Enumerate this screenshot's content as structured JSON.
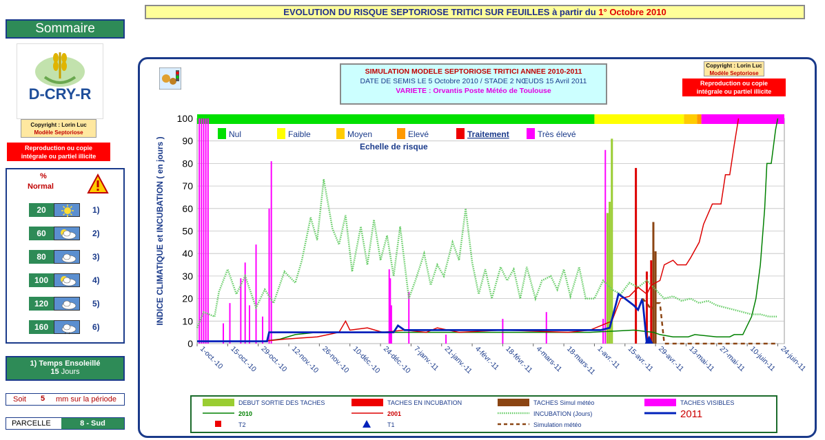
{
  "header": {
    "title_main": "EVOLUTION DU RISQUE SEPTORIOSE TRITICI SUR FEUILLES à partir du ",
    "title_date": "1° Octobre 2010"
  },
  "sidebar": {
    "sommaire": "Sommaire",
    "logo_text": "D-CRY-R",
    "copyright_line1": "Copyright : Lorin Luc",
    "copyright_line2": "Modèle Septoriose",
    "repro_line1": "Reproduction ou copie",
    "repro_line2": "intégrale ou partiel illicite",
    "pct_label": "%",
    "normal_label": "Normal",
    "rows": [
      {
        "pct": "20",
        "num": "1)",
        "icon": "sun-icon"
      },
      {
        "pct": "60",
        "num": "2)",
        "icon": "sun-cloud-icon"
      },
      {
        "pct": "80",
        "num": "3)",
        "icon": "cloud-icon"
      },
      {
        "pct": "100",
        "num": "4)",
        "icon": "sun-cloud-icon"
      },
      {
        "pct": "120",
        "num": "5)",
        "icon": "cloud-icon"
      },
      {
        "pct": "160",
        "num": "6)",
        "icon": "rain-cloud-icon"
      }
    ],
    "temps_label": "1) Temps Ensoleillé",
    "temps_value": "15",
    "temps_unit": "Jours",
    "soit_label": "Soit",
    "soit_value": "5",
    "soit_unit": "mm sur la période",
    "parcelle_label": "PARCELLE",
    "parcelle_value": "8 - Sud"
  },
  "simulation": {
    "line1": "SIMULATION MODELE SEPTORIOSE TRITICI  ANNEE 2010-2011",
    "line2": "DATE DE SEMIS LE 5 Octobre 2010 /  STADE 2 NŒUDS 15 Avril 2011",
    "line3": "VARIETE : Orvantis        Poste Météo de Toulouse"
  },
  "copyright_right": {
    "line1": "Copyright : Lorin Luc",
    "line2": "Modèle Septoriose",
    "repro1": "Reproduction ou copie",
    "repro2": "intégrale ou partiel illicite"
  },
  "colors": {
    "nul": "#00e000",
    "faible": "#ffff00",
    "moyen": "#ffcc00",
    "eleve": "#ff9900",
    "traitement": "#ee0000",
    "tres_eleve": "#ff00ff",
    "s2010": "#008000",
    "s2001": "#dd0000",
    "incubation": "#66cc66",
    "s2011": "#0022bb",
    "sim_meteo": "#8b4513",
    "debut_sortie": "#9acd32",
    "taches_simul": "#8b4513"
  },
  "chart_data": {
    "type": "line",
    "ylabel": "INDICE CLIMATIQUE  et  INCUBATION  ( en jours )",
    "ylim": [
      0,
      100
    ],
    "yticks": [
      "0",
      "10",
      "20",
      "30",
      "40",
      "50",
      "60",
      "70",
      "80",
      "90",
      "100"
    ],
    "xticks": [
      "1-oct.-10",
      "15-oct.-10",
      "29-oct.-10",
      "12-nov.-10",
      "26-nov.-10",
      "10-déc.-10",
      "24-déc.-10",
      "7-janv.-11",
      "21-janv.-11",
      "4-févr.-11",
      "18-févr.-11",
      "4-mars-11",
      "18-mars-11",
      "1-avr.-11",
      "15-avr.-11",
      "29-avr.-11",
      "13-mai-11",
      "27-mai-11",
      "10-juin-11",
      "24-juin-11"
    ],
    "risk_scale_title": "Echelle de risque",
    "risk_scale": [
      {
        "label": "Nul",
        "color": "#00e000"
      },
      {
        "label": "Faible",
        "color": "#ffff00"
      },
      {
        "label": "Moyen",
        "color": "#ffcc00"
      },
      {
        "label": "Elevé",
        "color": "#ff9900"
      },
      {
        "label": "Traitement",
        "color": "#ee0000"
      },
      {
        "label": "Très élevé",
        "color": "#ff00ff"
      }
    ],
    "risk_band": [
      {
        "from": 0,
        "to": 182,
        "color": "#00e000"
      },
      {
        "from": 182,
        "to": 223,
        "color": "#ffff00"
      },
      {
        "from": 223,
        "to": 229,
        "color": "#ffcc00"
      },
      {
        "from": 229,
        "to": 231,
        "color": "#ff9900"
      },
      {
        "from": 231,
        "to": 269,
        "color": "#ff00ff"
      }
    ],
    "series": [
      {
        "name": "INCUBATION (Jours)",
        "style": "dotted",
        "color": "#66cc66",
        "points": [
          [
            0,
            7
          ],
          [
            3,
            14
          ],
          [
            8,
            12
          ],
          [
            10,
            23
          ],
          [
            14,
            33
          ],
          [
            18,
            22
          ],
          [
            22,
            30
          ],
          [
            27,
            16
          ],
          [
            31,
            24
          ],
          [
            35,
            18
          ],
          [
            40,
            32
          ],
          [
            45,
            27
          ],
          [
            48,
            37
          ],
          [
            52,
            56
          ],
          [
            55,
            46
          ],
          [
            58,
            73
          ],
          [
            62,
            51
          ],
          [
            65,
            44
          ],
          [
            68,
            57
          ],
          [
            71,
            32
          ],
          [
            75,
            52
          ],
          [
            78,
            35
          ],
          [
            81,
            55
          ],
          [
            84,
            37
          ],
          [
            87,
            48
          ],
          [
            90,
            30
          ],
          [
            93,
            52
          ],
          [
            97,
            20
          ],
          [
            100,
            28
          ],
          [
            104,
            40
          ],
          [
            107,
            26
          ],
          [
            110,
            35
          ],
          [
            113,
            30
          ],
          [
            117,
            45
          ],
          [
            120,
            37
          ],
          [
            123,
            60
          ],
          [
            126,
            36
          ],
          [
            129,
            22
          ],
          [
            132,
            33
          ],
          [
            135,
            20
          ],
          [
            139,
            34
          ],
          [
            142,
            28
          ],
          [
            145,
            33
          ],
          [
            148,
            20
          ],
          [
            151,
            34
          ],
          [
            155,
            20
          ],
          [
            158,
            28
          ],
          [
            162,
            30
          ],
          [
            165,
            24
          ],
          [
            168,
            33
          ],
          [
            171,
            21
          ],
          [
            175,
            34
          ],
          [
            178,
            20
          ],
          [
            182,
            20
          ],
          [
            186,
            28
          ],
          [
            190,
            24
          ],
          [
            194,
            22
          ],
          [
            198,
            27
          ],
          [
            202,
            25
          ],
          [
            206,
            28
          ],
          [
            210,
            24
          ],
          [
            214,
            20
          ],
          [
            218,
            21
          ],
          [
            222,
            19
          ],
          [
            226,
            20
          ],
          [
            230,
            18
          ],
          [
            234,
            19
          ],
          [
            238,
            17
          ],
          [
            242,
            16
          ],
          [
            246,
            15
          ],
          [
            250,
            14
          ],
          [
            254,
            13
          ],
          [
            258,
            13
          ],
          [
            262,
            12
          ],
          [
            266,
            12
          ]
        ]
      },
      {
        "name": "2010",
        "style": "solid",
        "color": "#008000",
        "points": [
          [
            0,
            1
          ],
          [
            30,
            1
          ],
          [
            38,
            2
          ],
          [
            45,
            4
          ],
          [
            55,
            5
          ],
          [
            80,
            5
          ],
          [
            150,
            5
          ],
          [
            180,
            5
          ],
          [
            200,
            6
          ],
          [
            209,
            5
          ],
          [
            212,
            4
          ],
          [
            218,
            3
          ],
          [
            225,
            3
          ],
          [
            228,
            4
          ],
          [
            238,
            3
          ],
          [
            244,
            3
          ],
          [
            246,
            4
          ],
          [
            250,
            4
          ],
          [
            254,
            12
          ],
          [
            256,
            20
          ],
          [
            258,
            35
          ],
          [
            260,
            60
          ],
          [
            261,
            80
          ],
          [
            263,
            80
          ],
          [
            265,
            95
          ],
          [
            266,
            100
          ]
        ]
      },
      {
        "name": "2001",
        "style": "solid",
        "color": "#dd0000",
        "points": [
          [
            0,
            1
          ],
          [
            30,
            1
          ],
          [
            40,
            2
          ],
          [
            55,
            3
          ],
          [
            65,
            5
          ],
          [
            68,
            10
          ],
          [
            70,
            6
          ],
          [
            78,
            7
          ],
          [
            85,
            5
          ],
          [
            95,
            6
          ],
          [
            105,
            5
          ],
          [
            110,
            7
          ],
          [
            120,
            5
          ],
          [
            140,
            6
          ],
          [
            170,
            5
          ],
          [
            180,
            6
          ],
          [
            190,
            10
          ],
          [
            194,
            20
          ],
          [
            198,
            21
          ],
          [
            202,
            25
          ],
          [
            206,
            22
          ],
          [
            208,
            26
          ],
          [
            212,
            28
          ],
          [
            214,
            35
          ],
          [
            218,
            37
          ],
          [
            220,
            35
          ],
          [
            224,
            35
          ],
          [
            226,
            38
          ],
          [
            230,
            45
          ],
          [
            232,
            53
          ],
          [
            236,
            62
          ],
          [
            240,
            62
          ],
          [
            242,
            75
          ],
          [
            244,
            75
          ],
          [
            246,
            88
          ],
          [
            248,
            100
          ]
        ]
      },
      {
        "name": "2011",
        "style": "solid",
        "color": "#0022bb",
        "points": [
          [
            0,
            1
          ],
          [
            32,
            1
          ],
          [
            33,
            5
          ],
          [
            40,
            5
          ],
          [
            60,
            5
          ],
          [
            75,
            5
          ],
          [
            85,
            5
          ],
          [
            90,
            5
          ],
          [
            92,
            8
          ],
          [
            95,
            6
          ],
          [
            110,
            6
          ],
          [
            130,
            6
          ],
          [
            140,
            6
          ],
          [
            150,
            6
          ],
          [
            160,
            6
          ],
          [
            175,
            6
          ],
          [
            185,
            6
          ],
          [
            189,
            7
          ],
          [
            192,
            18
          ],
          [
            193,
            22
          ],
          [
            196,
            20
          ],
          [
            200,
            17
          ],
          [
            202,
            15
          ],
          [
            204,
            20
          ],
          [
            206,
            0
          ]
        ]
      },
      {
        "name": "Simulation météo",
        "style": "dashed",
        "color": "#8b4513",
        "points": [
          [
            204,
            20
          ],
          [
            206,
            18
          ],
          [
            208,
            15
          ],
          [
            210,
            18
          ],
          [
            212,
            18
          ],
          [
            214,
            0
          ],
          [
            266,
            0
          ]
        ]
      }
    ],
    "bars": [
      {
        "name": "TACHES VISIBLES",
        "color": "#ff00ff",
        "items": [
          [
            1,
            100
          ],
          [
            2,
            100
          ],
          [
            3,
            100
          ],
          [
            4,
            100
          ],
          [
            5,
            100
          ],
          [
            12,
            9
          ],
          [
            15,
            18
          ],
          [
            20,
            29
          ],
          [
            22,
            36
          ],
          [
            24,
            17
          ],
          [
            27,
            44
          ],
          [
            30,
            12
          ],
          [
            33,
            60
          ],
          [
            34,
            81
          ],
          [
            88,
            33
          ],
          [
            88.5,
            29
          ],
          [
            89,
            17
          ],
          [
            97,
            23
          ],
          [
            114,
            4
          ],
          [
            140,
            11
          ],
          [
            160,
            14
          ],
          [
            186,
            11
          ],
          [
            187,
            86
          ]
        ]
      },
      {
        "name": "DEBUT SORTIE DES TACHES",
        "color": "#9acd32",
        "items": [
          [
            188,
            58
          ],
          [
            189,
            63
          ],
          [
            190,
            91
          ]
        ]
      },
      {
        "name": "TACHES EN INCUBATION",
        "color": "#dd0000",
        "items": [
          [
            201,
            78
          ],
          [
            206,
            32
          ],
          [
            208,
            37
          ]
        ]
      },
      {
        "name": "TACHES Simul météo",
        "color": "#8b4513",
        "items": [
          [
            209,
            54
          ],
          [
            210,
            41
          ]
        ]
      }
    ],
    "markers": [
      {
        "name": "T1",
        "x": 207,
        "y": 0,
        "shape": "triangle",
        "color": "#0022bb"
      }
    ],
    "legend": [
      {
        "label": "DEBUT SORTIE DES TACHES",
        "kind": "bar",
        "color": "#9acd32"
      },
      {
        "label": "TACHES EN INCUBATION",
        "kind": "bar",
        "color": "#ee0000"
      },
      {
        "label": "TACHES Simul météo",
        "kind": "bar",
        "color": "#8b4513"
      },
      {
        "label": "TACHES VISIBLES",
        "kind": "bar",
        "color": "#ff00ff"
      },
      {
        "label": "2010",
        "kind": "line",
        "color": "#008000"
      },
      {
        "label": "2001",
        "kind": "line",
        "color": "#dd0000"
      },
      {
        "label": "INCUBATION (Jours)",
        "kind": "dotted",
        "color": "#66cc66"
      },
      {
        "label": "2011",
        "kind": "line",
        "color": "#0022bb"
      },
      {
        "label": "T2",
        "kind": "square",
        "color": "#ee0000"
      },
      {
        "label": "T1",
        "kind": "triangle",
        "color": "#0022bb"
      },
      {
        "label": "Simulation météo",
        "kind": "dashed",
        "color": "#8b4513"
      }
    ]
  }
}
